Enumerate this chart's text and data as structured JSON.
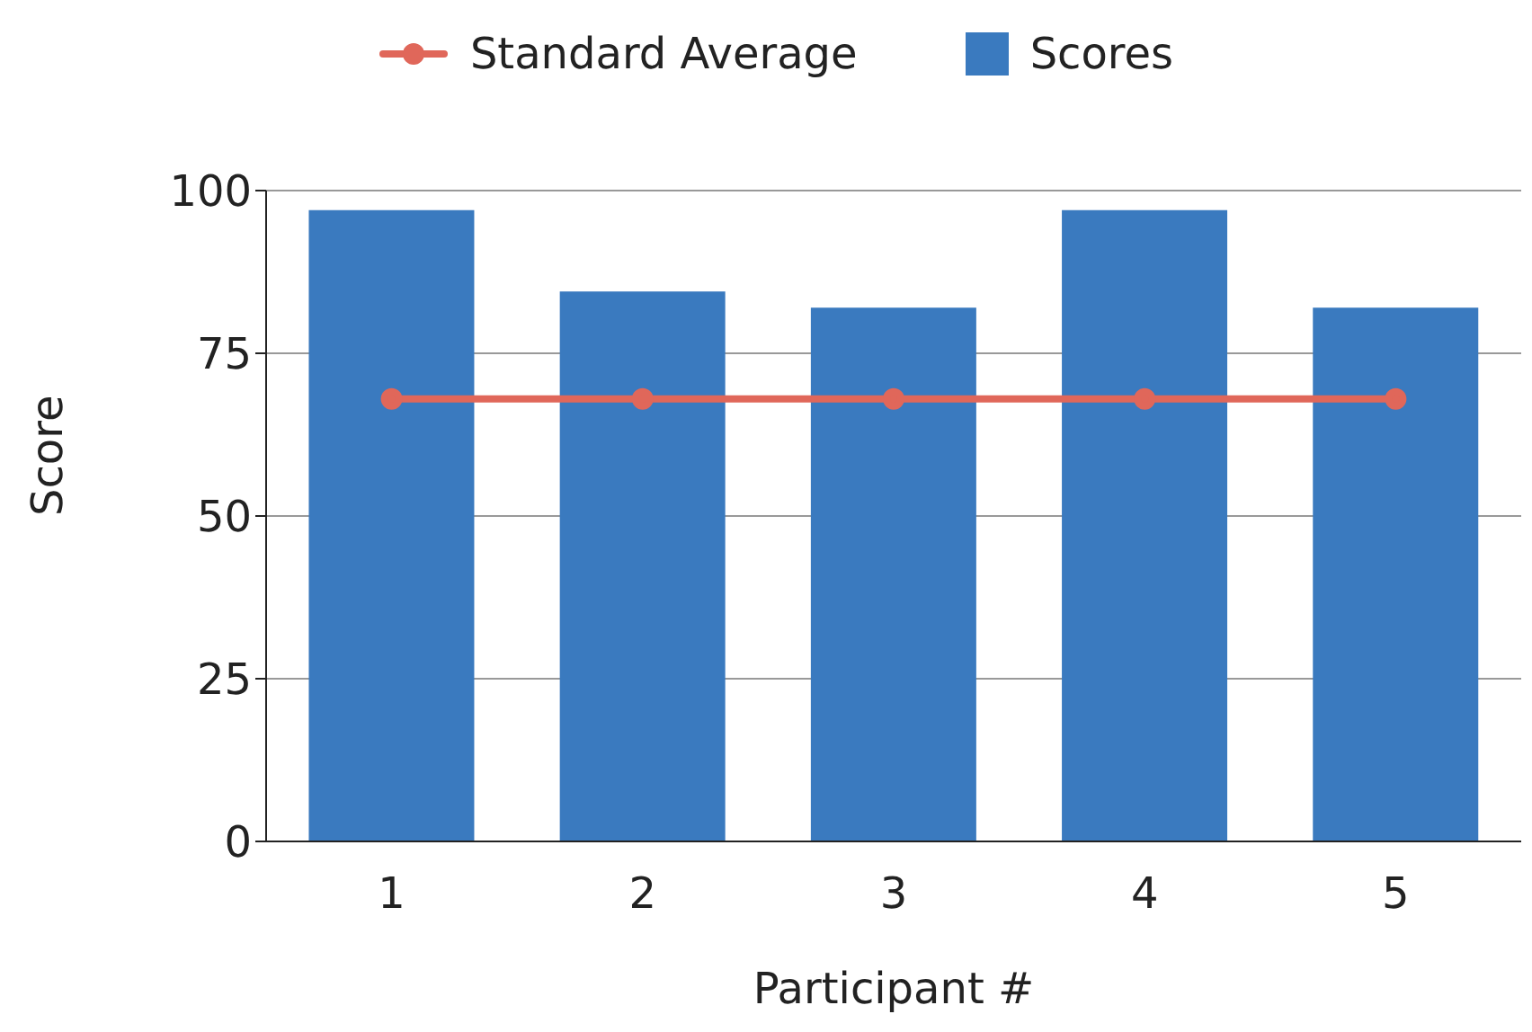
{
  "chart_data": {
    "type": "bar",
    "xlabel": "Participant #",
    "ylabel": "Score",
    "categories": [
      "1",
      "2",
      "3",
      "4",
      "5"
    ],
    "series": [
      {
        "name": "Scores",
        "color": "#3a7abf",
        "values": [
          97,
          84.5,
          82,
          97,
          82
        ]
      },
      {
        "name": "Standard Average",
        "type": "line",
        "color": "#e0675a",
        "values": [
          68,
          68,
          68,
          68,
          68
        ]
      }
    ],
    "ylim": [
      0,
      100
    ],
    "yticks": [
      0,
      25,
      50,
      75,
      100
    ],
    "grid": "y",
    "legend": "top",
    "marker": "circle"
  }
}
